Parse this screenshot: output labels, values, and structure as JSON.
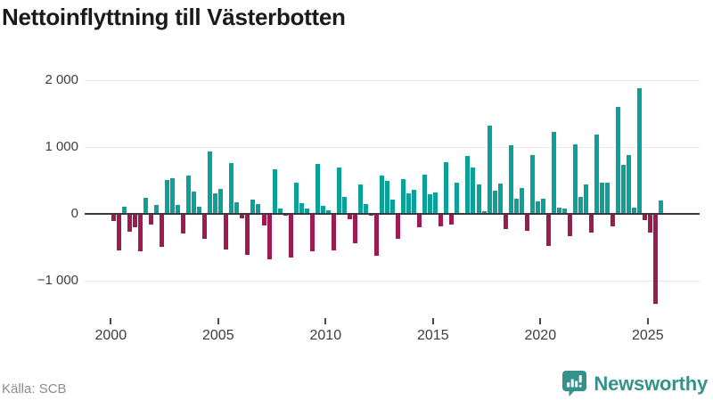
{
  "title": "Nettoinflyttning till Västerbotten",
  "source": "Källa: SCB",
  "branding": {
    "name": "Newsworthy",
    "icon": "bar-chart-speech-bubble-icon"
  },
  "colors": {
    "positive_bar": "#0aa19a",
    "negative_bar": "#9e1a50",
    "zero_line": "#3a3a3a",
    "gridline": "#e6e6e6",
    "brand_teal": "#35918c"
  },
  "chart_data": {
    "type": "bar",
    "title": "Nettoinflyttning till Västerbotten",
    "xlabel": "",
    "ylabel": "",
    "frequency": "quarterly",
    "start_year": 2000,
    "start_quarter": 1,
    "x_tick_labels": [
      "2000",
      "2005",
      "2010",
      "2015",
      "2020",
      "2025"
    ],
    "x_tick_years": [
      2000,
      2005,
      2010,
      2015,
      2020,
      2025
    ],
    "y_ticks": [
      2000,
      1000,
      0,
      -1000
    ],
    "y_tick_labels": [
      "2 000",
      "1 000",
      "0",
      "−1 000"
    ],
    "ylim": [
      -1500,
      2150
    ],
    "grid": "horizontal",
    "legend": "none",
    "values": [
      -100,
      -550,
      110,
      -265,
      -200,
      -565,
      245,
      -155,
      130,
      -490,
      510,
      530,
      130,
      -300,
      575,
      340,
      110,
      -375,
      935,
      310,
      370,
      -540,
      760,
      175,
      -65,
      -620,
      215,
      145,
      -175,
      -675,
      665,
      75,
      -25,
      -650,
      465,
      160,
      85,
      -555,
      750,
      120,
      50,
      -545,
      690,
      250,
      -80,
      -435,
      445,
      145,
      -20,
      -630,
      580,
      490,
      215,
      -380,
      520,
      305,
      360,
      -195,
      595,
      290,
      325,
      -190,
      775,
      -160,
      470,
      10,
      875,
      690,
      440,
      40,
      1320,
      350,
      460,
      -225,
      1030,
      230,
      390,
      -260,
      885,
      185,
      230,
      -480,
      1230,
      95,
      85,
      -335,
      1045,
      260,
      445,
      -285,
      1195,
      470,
      465,
      -185,
      1610,
      730,
      885,
      95,
      1890,
      -90,
      -285,
      -1350,
      200
    ]
  }
}
